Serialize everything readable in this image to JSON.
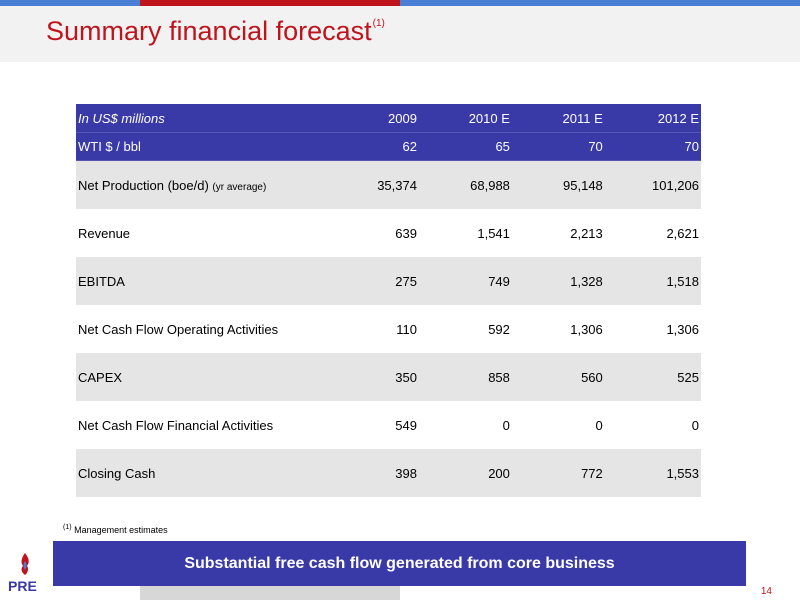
{
  "title": "Summary financial forecast",
  "title_footnote_marker": "(1)",
  "table": {
    "header": {
      "label": "In US$ millions",
      "cols": [
        "2009",
        "2010 E",
        "2011 E",
        "2012 E"
      ]
    },
    "wti": {
      "label": "WTI $ / bbl",
      "values": [
        "62",
        "65",
        "70",
        "70"
      ]
    },
    "rows": [
      {
        "label": "Net Production (boe/d)",
        "note": "(yr average)",
        "values": [
          "35,374",
          "68,988",
          "95,148",
          "101,206"
        ]
      },
      {
        "label": "Revenue",
        "values": [
          "639",
          "1,541",
          "2,213",
          "2,621"
        ]
      },
      {
        "label": "EBITDA",
        "values": [
          "275",
          "749",
          "1,328",
          "1,518"
        ]
      },
      {
        "label": "Net Cash Flow Operating Activities",
        "values": [
          "110",
          "592",
          "1,306",
          "1,306"
        ]
      },
      {
        "label": "CAPEX",
        "values": [
          "350",
          "858",
          "560",
          "525"
        ]
      },
      {
        "label": "Net Cash Flow Financial Activities",
        "values": [
          "549",
          "0",
          "0",
          "0"
        ]
      },
      {
        "label": "Closing Cash",
        "values": [
          "398",
          "200",
          "772",
          "1,553"
        ]
      }
    ]
  },
  "footnote": {
    "marker": "(1)",
    "text": "Management estimates"
  },
  "banner": "Substantial free cash flow generated from core business",
  "logo_text": "PRE",
  "page_number": "14",
  "colors": {
    "accent_red": "#c0141c",
    "table_blue": "#3a39a8",
    "stripe_blue": "#4a7fd6",
    "row_shade": "#e5e5e5"
  }
}
